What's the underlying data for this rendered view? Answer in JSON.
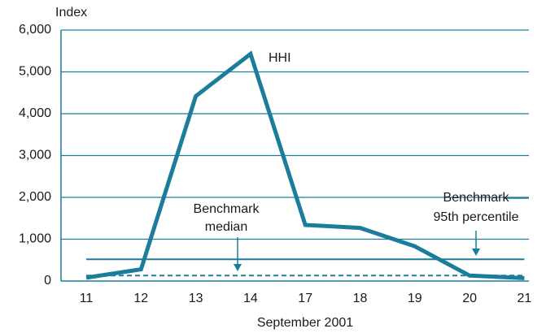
{
  "chart_data": {
    "type": "line",
    "y_label": "Index",
    "x_label": "September 2001",
    "categories": [
      "11",
      "12",
      "13",
      "14",
      "17",
      "18",
      "19",
      "20",
      "21"
    ],
    "series": [
      {
        "name": "HHI",
        "color": "#1b7d9b",
        "values": [
          80,
          280,
          4420,
          5430,
          1340,
          1270,
          830,
          130,
          70
        ]
      },
      {
        "label_lines": [
          "Benchmark",
          "95th percentile"
        ],
        "color": "#1b7d9b",
        "dashed": false,
        "values": [
          520,
          520,
          520,
          520,
          520,
          520,
          520,
          520,
          520
        ]
      },
      {
        "label_lines": [
          "Benchmark",
          "median"
        ],
        "color": "#1b7d9b",
        "dashed": true,
        "values": [
          130,
          130,
          130,
          130,
          130,
          130,
          130,
          130,
          130
        ]
      }
    ],
    "ylim": [
      0,
      6000
    ],
    "yticks": [
      0,
      {
        "value": 1000,
        "label": "1,000"
      },
      {
        "value": 2000,
        "label": "2,000"
      },
      {
        "value": 3000,
        "label": "3,000"
      },
      {
        "value": 4000,
        "label": "4,000"
      },
      {
        "value": 5000,
        "label": "5,000"
      },
      {
        "value": 6000,
        "label": "6,000"
      }
    ],
    "grid": true
  }
}
